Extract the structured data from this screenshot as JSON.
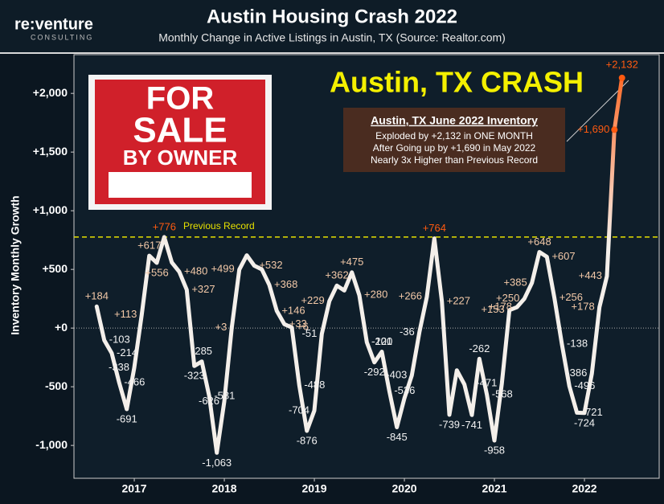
{
  "logo": {
    "name": "re:venture",
    "sub": "CONSULTING"
  },
  "sign": {
    "lines": [
      "FOR",
      "SALE",
      "BY OWNER"
    ]
  },
  "chart_data": {
    "type": "line",
    "title": "Austin Housing Crash 2022",
    "subtitle": "Monthly Change in Active Listings in Austin, TX (Source: Realtor.com)",
    "y_label": "Inventory Monthly Growth",
    "headline": "Austin, TX CRASH",
    "callout": {
      "title": "Austin, TX June 2022 Inventory",
      "lines": [
        "Exploded by +2,132 in ONE MONTH",
        "After Going up by +1,690 in May 2022",
        "Nearly 3x Higher than Previous Record"
      ]
    },
    "reference_line": {
      "value": 776,
      "label": "Previous Record",
      "color": "#e6e000"
    },
    "gradient": [
      "#f4efea",
      "#ff5a10"
    ],
    "x": [
      2016.583,
      2016.667,
      2016.75,
      2016.833,
      2016.917,
      2017.0,
      2017.083,
      2017.167,
      2017.25,
      2017.333,
      2017.417,
      2017.5,
      2017.583,
      2017.667,
      2017.75,
      2017.833,
      2017.917,
      2018.0,
      2018.083,
      2018.167,
      2018.25,
      2018.333,
      2018.417,
      2018.5,
      2018.583,
      2018.667,
      2018.75,
      2018.833,
      2018.917,
      2019.0,
      2019.083,
      2019.167,
      2019.25,
      2019.333,
      2019.417,
      2019.5,
      2019.583,
      2019.667,
      2019.75,
      2019.833,
      2019.917,
      2020.0,
      2020.083,
      2020.167,
      2020.25,
      2020.333,
      2020.417,
      2020.5,
      2020.583,
      2020.667,
      2020.75,
      2020.833,
      2020.917,
      2021.0,
      2021.083,
      2021.167,
      2021.25,
      2021.333,
      2021.417,
      2021.5,
      2021.583,
      2021.667,
      2021.75,
      2021.833,
      2021.917,
      2022.0,
      2022.083,
      2022.167,
      2022.25,
      2022.333,
      2022.417
    ],
    "values": [
      184,
      -103,
      -214,
      -466,
      -691,
      -338,
      113,
      617,
      556,
      776,
      560,
      480,
      327,
      -323,
      -285,
      -581,
      -1063,
      -626,
      3,
      499,
      620,
      532,
      500,
      368,
      146,
      33,
      6,
      -488,
      -876,
      -704,
      -51,
      229,
      362,
      320,
      475,
      280,
      -120,
      -292,
      -201,
      -536,
      -845,
      -600,
      -403,
      -36,
      266,
      764,
      227,
      -739,
      -360,
      -480,
      -741,
      -262,
      -568,
      -958,
      -471,
      153,
      178,
      250,
      385,
      648,
      607,
      256,
      -138,
      -496,
      -721,
      -724,
      -386,
      178,
      443,
      1690,
      2132
    ],
    "value_labels": [
      "+184",
      "-103",
      "-214",
      "-466",
      "-691",
      "-338",
      "+113",
      "+617",
      "+556",
      "+776",
      null,
      "+480",
      "+327",
      "-323",
      "-285",
      "-581",
      "-1,063",
      "-626",
      "+3",
      "+499",
      null,
      "+532",
      null,
      "+368",
      "+146",
      "+33",
      "+6",
      "-488",
      "-876",
      "-704",
      "-51",
      "+229",
      "+362",
      null,
      "+475",
      "+280",
      "-120",
      "-292",
      "-201",
      "-536",
      "-845",
      null,
      "-403",
      "-36",
      "+266",
      "+764",
      "+227",
      "-739",
      null,
      null,
      "-741",
      "-262",
      "-568",
      "-958",
      "-471",
      "+153",
      "+178",
      "+250",
      "+385",
      "+648",
      "+607",
      "+256",
      "-138",
      "-496",
      "-721",
      "-724",
      "-386",
      "+178",
      "+443",
      "+1,690",
      "+2,132"
    ],
    "xlim": [
      2016.33,
      2022.83
    ],
    "xticks": [
      2017,
      2018,
      2019,
      2020,
      2021,
      2022
    ],
    "ylim": [
      -1280,
      2330
    ],
    "yticks": [
      {
        "value": -1000,
        "label": "-1,000"
      },
      -500,
      {
        "value": 0,
        "label": "+0"
      },
      {
        "value": 500,
        "label": "+500"
      },
      {
        "value": 1000,
        "label": "+1,000"
      },
      {
        "value": 1500,
        "label": "+1,500"
      },
      {
        "value": 2000,
        "label": "+2,000"
      }
    ]
  }
}
